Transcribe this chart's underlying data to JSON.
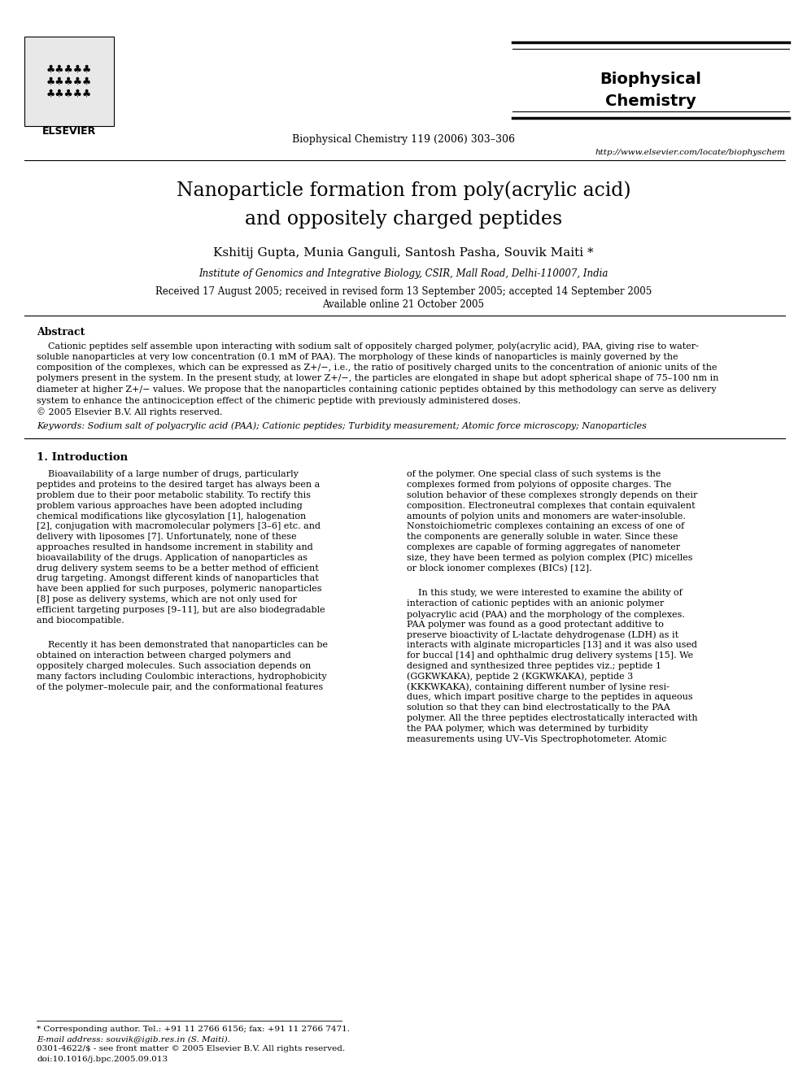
{
  "title_line1": "Nanoparticle formation from poly(acrylic acid)",
  "title_line2": "and oppositely charged peptides",
  "authors": "Kshitij Gupta, Munia Ganguli, Santosh Pasha, Souvik Maiti *",
  "affiliation": "Institute of Genomics and Integrative Biology, CSIR, Mall Road, Delhi-110007, India",
  "received": "Received 17 August 2005; received in revised form 13 September 2005; accepted 14 September 2005",
  "available": "Available online 21 October 2005",
  "journal_header": "Biophysical Chemistry 119 (2006) 303–306",
  "journal_name_line1": "Biophysical",
  "journal_name_line2": "Chemistry",
  "journal_url": "http://www.elsevier.com/locate/biophyschem",
  "abstract_title": "Abstract",
  "keywords": "Keywords: Sodium salt of polyacrylic acid (PAA); Cationic peptides; Turbidity measurement; Atomic force microscopy; Nanoparticles",
  "section1_title": "1. Introduction",
  "footnote_star": "* Corresponding author. Tel.: +91 11 2766 6156; fax: +91 11 2766 7471.",
  "footnote_email": "E-mail address: souvik@igib.res.in (S. Maiti).",
  "footer_issn": "0301-4622/$ - see front matter © 2005 Elsevier B.V. All rights reserved.",
  "footer_doi": "doi:10.1016/j.bpc.2005.09.013",
  "bg_color": "#ffffff",
  "abstract_lines": [
    "    Cationic peptides self assemble upon interacting with sodium salt of oppositely charged polymer, poly(acrylic acid), PAA, giving rise to water-",
    "soluble nanoparticles at very low concentration (0.1 mM of PAA). The morphology of these kinds of nanoparticles is mainly governed by the",
    "composition of the complexes, which can be expressed as Z+/−, i.e., the ratio of positively charged units to the concentration of anionic units of the",
    "polymers present in the system. In the present study, at lower Z+/−, the particles are elongated in shape but adopt spherical shape of 75–100 nm in",
    "diameter at higher Z+/− values. We propose that the nanoparticles containing cationic peptides obtained by this methodology can serve as delivery",
    "system to enhance the antinociception effect of the chimeric peptide with previously administered doses.",
    "© 2005 Elsevier B.V. All rights reserved."
  ],
  "col1_lines": [
    "    Bioavailability of a large number of drugs, particularly",
    "peptides and proteins to the desired target has always been a",
    "problem due to their poor metabolic stability. To rectify this",
    "problem various approaches have been adopted including",
    "chemical modifications like glycosylation [1], halogenation",
    "[2], conjugation with macromolecular polymers [3–6] etc. and",
    "delivery with liposomes [7]. Unfortunately, none of these",
    "approaches resulted in handsome increment in stability and",
    "bioavailability of the drugs. Application of nanoparticles as",
    "drug delivery system seems to be a better method of efficient",
    "drug targeting. Amongst different kinds of nanoparticles that",
    "have been applied for such purposes, polymeric nanoparticles",
    "[8] pose as delivery systems, which are not only used for",
    "efficient targeting purposes [9–11], but are also biodegradable",
    "and biocompatible.",
    "",
    "    Recently it has been demonstrated that nanoparticles can be",
    "obtained on interaction between charged polymers and",
    "oppositely charged molecules. Such association depends on",
    "many factors including Coulombic interactions, hydrophobicity",
    "of the polymer–molecule pair, and the conformational features"
  ],
  "col2_lines": [
    "of the polymer. One special class of such systems is the",
    "complexes formed from polyions of opposite charges. The",
    "solution behavior of these complexes strongly depends on their",
    "composition. Electroneutral complexes that contain equivalent",
    "amounts of polyion units and monomers are water-insoluble.",
    "Nonstoichiometric complexes containing an excess of one of",
    "the components are generally soluble in water. Since these",
    "complexes are capable of forming aggregates of nanometer",
    "size, they have been termed as polyion complex (PIC) micelles",
    "or block ionomer complexes (BICs) [12].",
    "",
    "    In this study, we were interested to examine the ability of",
    "interaction of cationic peptides with an anionic polymer",
    "polyacrylic acid (PAA) and the morphology of the complexes.",
    "PAA polymer was found as a good protectant additive to",
    "preserve bioactivity of L-lactate dehydrogenase (LDH) as it",
    "interacts with alginate microparticles [13] and it was also used",
    "for buccal [14] and ophthalmic drug delivery systems [15]. We",
    "designed and synthesized three peptides viz.; peptide 1",
    "(GGKWKAKA), peptide 2 (KGKWKAKA), peptide 3",
    "(KKKWKAKA), containing different number of lysine resi-",
    "dues, which impart positive charge to the peptides in aqueous",
    "solution so that they can bind electrostatically to the PAA",
    "polymer. All the three peptides electrostatically interacted with",
    "the PAA polymer, which was determined by turbidity",
    "measurements using UV–Vis Spectrophotometer. Atomic"
  ]
}
